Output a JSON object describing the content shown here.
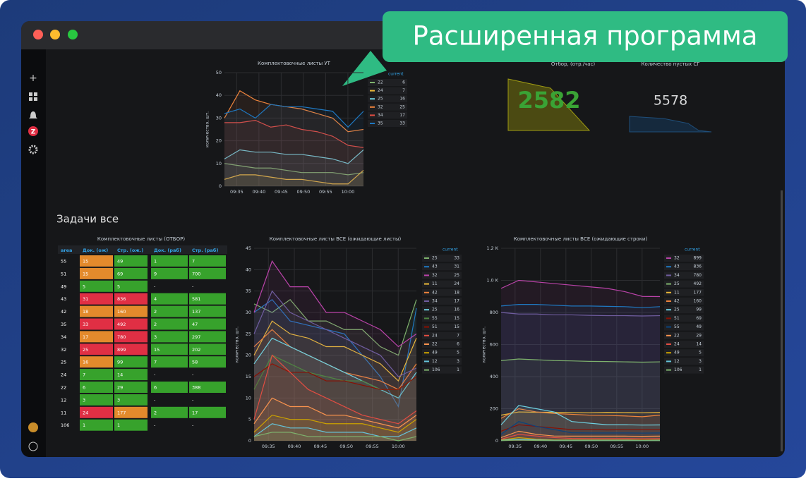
{
  "badge": "Расширенная программа",
  "section_title": "Задачи все",
  "stats": [
    {
      "title": "Отбор, (отр./час)",
      "value": 2582,
      "color": "#3aa335"
    },
    {
      "title": "Количество пустых СГ",
      "value": 5578,
      "color": "#d8d9da"
    }
  ],
  "table": {
    "title": "Комплектовочные листы (ОТБОР)",
    "columns": [
      "area",
      "Док. (ож)",
      "Стр. (ож.)",
      "Док. (раб)",
      "Стр. (раб)"
    ],
    "rows": [
      [
        "55",
        "15",
        "49",
        "1",
        "7"
      ],
      [
        "51",
        "15",
        "69",
        "9",
        "700"
      ],
      [
        "49",
        "5",
        "5",
        "-",
        "-"
      ],
      [
        "43",
        "31",
        "836",
        "4",
        "581"
      ],
      [
        "42",
        "18",
        "160",
        "2",
        "137"
      ],
      [
        "35",
        "33",
        "492",
        "2",
        "47"
      ],
      [
        "34",
        "17",
        "780",
        "3",
        "297"
      ],
      [
        "32",
        "25",
        "899",
        "15",
        "202"
      ],
      [
        "25",
        "16",
        "99",
        "7",
        "58"
      ],
      [
        "24",
        "7",
        "14",
        "-",
        "-"
      ],
      [
        "22",
        "6",
        "29",
        "6",
        "388"
      ],
      [
        "12",
        "3",
        "3",
        "-",
        "-"
      ],
      [
        "11",
        "24",
        "177",
        "2",
        "17"
      ],
      [
        "106",
        "1",
        "1",
        "-",
        "-"
      ]
    ],
    "cell_colors": [
      [
        "",
        "#e38a2c",
        "#37a22c",
        "#37a22c",
        "#37a22c"
      ],
      [
        "",
        "#e38a2c",
        "#37a22c",
        "#37a22c",
        "#37a22c"
      ],
      [
        "",
        "#37a22c",
        "#37a22c",
        "",
        ""
      ],
      [
        "",
        "#e02f44",
        "#e02f44",
        "#37a22c",
        "#37a22c"
      ],
      [
        "",
        "#e38a2c",
        "#e38a2c",
        "#37a22c",
        "#37a22c"
      ],
      [
        "",
        "#e02f44",
        "#e02f44",
        "#37a22c",
        "#37a22c"
      ],
      [
        "",
        "#e38a2c",
        "#e02f44",
        "#37a22c",
        "#37a22c"
      ],
      [
        "",
        "#e02f44",
        "#e02f44",
        "#37a22c",
        "#37a22c"
      ],
      [
        "",
        "#e38a2c",
        "#37a22c",
        "#37a22c",
        "#37a22c"
      ],
      [
        "",
        "#37a22c",
        "#37a22c",
        "",
        ""
      ],
      [
        "",
        "#37a22c",
        "#37a22c",
        "#37a22c",
        "#37a22c"
      ],
      [
        "",
        "#37a22c",
        "#37a22c",
        "",
        ""
      ],
      [
        "",
        "#e02f44",
        "#e38a2c",
        "#37a22c",
        "#37a22c"
      ],
      [
        "",
        "#37a22c",
        "#37a22c",
        "",
        ""
      ]
    ]
  },
  "chart_data": [
    {
      "type": "line",
      "title": "Комплектовочные листы УТ",
      "y_label": "количество, шт.",
      "legend_header": "current",
      "xticks": [
        "09:35",
        "09:40",
        "09:45",
        "09:50",
        "09:55",
        "10:00"
      ],
      "ylim": [
        0,
        50
      ],
      "yticks": [
        0,
        10,
        20,
        30,
        40,
        50
      ],
      "grid": true,
      "series": [
        {
          "name": "22",
          "color": "#7eb26d",
          "values": [
            10,
            9,
            8,
            8,
            7,
            6,
            6,
            6,
            5,
            6
          ]
        },
        {
          "name": "24",
          "color": "#eab839",
          "values": [
            3,
            5,
            5,
            4,
            3,
            3,
            2,
            1,
            1,
            7
          ]
        },
        {
          "name": "25",
          "color": "#6ed0e0",
          "values": [
            12,
            16,
            15,
            15,
            14,
            14,
            13,
            12,
            10,
            16
          ]
        },
        {
          "name": "32",
          "color": "#ef843c",
          "values": [
            30,
            42,
            38,
            36,
            35,
            34,
            32,
            30,
            24,
            25
          ]
        },
        {
          "name": "34",
          "color": "#e24d42",
          "values": [
            28,
            28,
            29,
            26,
            27,
            25,
            24,
            22,
            18,
            17
          ]
        },
        {
          "name": "35",
          "color": "#1f78c1",
          "values": [
            32,
            34,
            30,
            36,
            35,
            35,
            34,
            33,
            26,
            33
          ]
        }
      ]
    },
    {
      "type": "line",
      "title": "Комплектовочные листы ВСЕ (ожидающие листы)",
      "y_label": "количество, шт.",
      "legend_header": "current",
      "xticks": [
        "09:35",
        "09:40",
        "09:45",
        "09:50",
        "09:55",
        "10:00"
      ],
      "ylim": [
        0,
        45
      ],
      "yticks": [
        0,
        5,
        10,
        15,
        20,
        25,
        30,
        35,
        40,
        45
      ],
      "grid": true,
      "series": [
        {
          "name": "25",
          "color": "#7eb26d",
          "values": [
            32,
            30,
            33,
            28,
            28,
            26,
            26,
            22,
            20,
            33
          ]
        },
        {
          "name": "43",
          "color": "#1f78c1",
          "values": [
            30,
            33,
            28,
            27,
            26,
            25,
            20,
            15,
            8,
            31
          ]
        },
        {
          "name": "32",
          "color": "#ba43a9",
          "values": [
            30,
            42,
            36,
            36,
            30,
            30,
            28,
            26,
            22,
            25
          ]
        },
        {
          "name": "11",
          "color": "#eab839",
          "values": [
            20,
            28,
            25,
            24,
            22,
            22,
            20,
            18,
            14,
            24
          ]
        },
        {
          "name": "42",
          "color": "#ef843c",
          "values": [
            22,
            26,
            22,
            20,
            18,
            16,
            15,
            14,
            12,
            18
          ]
        },
        {
          "name": "34",
          "color": "#705da0",
          "values": [
            25,
            35,
            30,
            28,
            26,
            24,
            22,
            20,
            15,
            17
          ]
        },
        {
          "name": "25",
          "color": "#6ed0e0",
          "values": [
            18,
            24,
            22,
            20,
            18,
            16,
            14,
            12,
            10,
            16
          ]
        },
        {
          "name": "55",
          "color": "#508642",
          "values": [
            12,
            20,
            18,
            16,
            15,
            14,
            14,
            12,
            12,
            15
          ]
        },
        {
          "name": "51",
          "color": "#890f02",
          "values": [
            15,
            18,
            16,
            16,
            14,
            14,
            13,
            12,
            12,
            15
          ]
        },
        {
          "name": "24",
          "color": "#e24d42",
          "values": [
            5,
            20,
            16,
            12,
            10,
            8,
            6,
            5,
            4,
            7
          ]
        },
        {
          "name": "22",
          "color": "#f9934e",
          "values": [
            4,
            10,
            8,
            8,
            6,
            6,
            5,
            4,
            3,
            6
          ]
        },
        {
          "name": "49",
          "color": "#cca300",
          "values": [
            2,
            6,
            5,
            5,
            4,
            4,
            4,
            3,
            2,
            5
          ]
        },
        {
          "name": "12",
          "color": "#65c5db",
          "values": [
            1,
            4,
            3,
            3,
            2,
            2,
            2,
            1,
            1,
            3
          ]
        },
        {
          "name": "106",
          "color": "#7eb26d",
          "values": [
            1,
            2,
            2,
            1,
            1,
            1,
            1,
            1,
            0,
            1
          ]
        }
      ]
    },
    {
      "type": "line",
      "title": "Комплектовочные листы ВСЕ (ожидающие строки)",
      "y_label": "количество, шт.",
      "legend_header": "current",
      "xticks": [
        "09:35",
        "09:40",
        "09:45",
        "09:50",
        "09:55",
        "10:00"
      ],
      "ylim": [
        0,
        1200
      ],
      "yticks": [
        0,
        200,
        400,
        600,
        800,
        {
          "value": 1000,
          "label": "1.0 K"
        },
        {
          "value": 1200,
          "label": "1.2 K"
        }
      ],
      "grid": true,
      "series": [
        {
          "name": "32",
          "color": "#ba43a9",
          "values": [
            950,
            1000,
            990,
            980,
            970,
            960,
            950,
            930,
            900,
            899
          ]
        },
        {
          "name": "43",
          "color": "#1f78c1",
          "values": [
            840,
            850,
            850,
            845,
            840,
            840,
            838,
            836,
            830,
            836
          ]
        },
        {
          "name": "34",
          "color": "#705da0",
          "values": [
            800,
            790,
            790,
            785,
            785,
            782,
            780,
            780,
            778,
            780
          ]
        },
        {
          "name": "25",
          "color": "#7eb26d",
          "values": [
            500,
            510,
            505,
            500,
            498,
            495,
            494,
            492,
            490,
            492
          ]
        },
        {
          "name": "11",
          "color": "#eab839",
          "values": [
            160,
            180,
            178,
            178,
            176,
            175,
            177,
            176,
            175,
            177
          ]
        },
        {
          "name": "42",
          "color": "#ef843c",
          "values": [
            140,
            200,
            180,
            170,
            165,
            160,
            158,
            155,
            150,
            160
          ]
        },
        {
          "name": "25",
          "color": "#6ed0e0",
          "values": [
            100,
            220,
            200,
            180,
            120,
            110,
            100,
            100,
            98,
            99
          ]
        },
        {
          "name": "51",
          "color": "#890f02",
          "values": [
            60,
            100,
            90,
            80,
            70,
            70,
            68,
            69,
            69,
            69
          ]
        },
        {
          "name": "55",
          "color": "#0a437c",
          "values": [
            40,
            120,
            90,
            70,
            50,
            49,
            49,
            49,
            48,
            49
          ]
        },
        {
          "name": "22",
          "color": "#f9934e",
          "values": [
            20,
            60,
            40,
            30,
            29,
            29,
            29,
            29,
            28,
            29
          ]
        },
        {
          "name": "24",
          "color": "#e24d42",
          "values": [
            10,
            40,
            30,
            20,
            15,
            14,
            14,
            14,
            13,
            14
          ]
        },
        {
          "name": "49",
          "color": "#cca300",
          "values": [
            5,
            20,
            10,
            5,
            5,
            5,
            5,
            5,
            4,
            5
          ]
        },
        {
          "name": "12",
          "color": "#65c5db",
          "values": [
            3,
            10,
            5,
            3,
            3,
            3,
            3,
            3,
            2,
            3
          ]
        },
        {
          "name": "106",
          "color": "#7eb26d",
          "values": [
            1,
            5,
            2,
            1,
            1,
            1,
            1,
            1,
            1,
            1
          ]
        }
      ]
    }
  ]
}
